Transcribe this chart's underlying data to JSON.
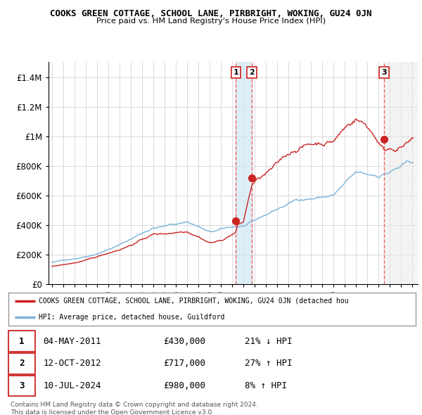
{
  "title": "COOKS GREEN COTTAGE, SCHOOL LANE, PIRBRIGHT, WOKING, GU24 0JN",
  "subtitle": "Price paid vs. HM Land Registry's House Price Index (HPI)",
  "ylim": [
    0,
    1500000
  ],
  "yticks": [
    0,
    200000,
    400000,
    600000,
    800000,
    1000000,
    1200000,
    1400000
  ],
  "ytick_labels": [
    "£0",
    "£200K",
    "£400K",
    "£600K",
    "£800K",
    "£1M",
    "£1.2M",
    "£1.4M"
  ],
  "hpi_color": "#7ab4d8",
  "price_color": "#cc2222",
  "sale1_x": 2011.33,
  "sale2_x": 2012.75,
  "sale3_x": 2024.5,
  "sale1_price": 430000,
  "sale2_price": 717000,
  "sale3_price": 980000,
  "legend_text_red": "COOKS GREEN COTTAGE, SCHOOL LANE, PIRBRIGHT, WOKING, GU24 0JN (detached hou",
  "legend_text_blue": "HPI: Average price, detached house, Guildford",
  "table_rows": [
    [
      "1",
      "04-MAY-2011",
      "£430,000",
      "21% ↓ HPI"
    ],
    [
      "2",
      "12-OCT-2012",
      "£717,000",
      "27% ↑ HPI"
    ],
    [
      "3",
      "10-JUL-2024",
      "£980,000",
      "8% ↑ HPI"
    ]
  ],
  "footer": "Contains HM Land Registry data © Crown copyright and database right 2024.\nThis data is licensed under the Open Government Licence v3.0.",
  "xmin": 1995.0,
  "xmax": 2027.5
}
